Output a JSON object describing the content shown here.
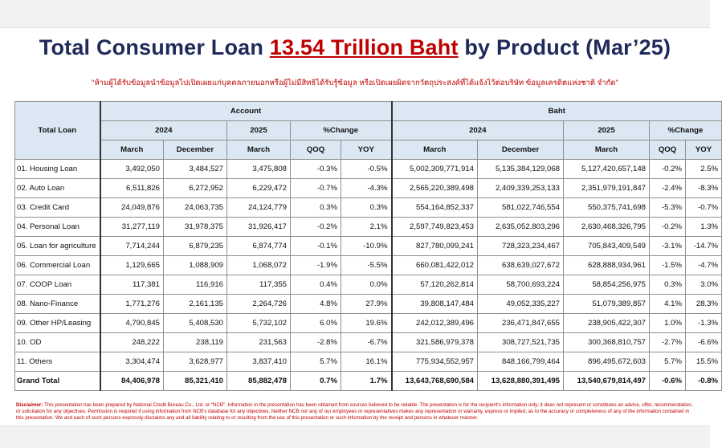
{
  "title": {
    "prefix": "Total Consumer Loan ",
    "highlight": "13.54 Trillion Baht",
    "suffix": " by Product (Mar’25)"
  },
  "notice": "\"ห้ามผู้ได้รับข้อมูลนำข้อมูลไปเปิดเผยแก่บุคคลภายนอกหรือผู้ไม่มีสิทธิได้รับรู้ข้อมูล หรือเปิดเผยผิดจากวัตถุประสงค์ที่ได้แจ้งไว้ต่อบริษัท ข้อมูลเครดิตแห่งชาติ จำกัด\"",
  "table": {
    "corner": "Total Loan",
    "groups": {
      "account": "Account",
      "baht": "Baht"
    },
    "years": {
      "y2024": "2024",
      "y2025": "2025",
      "change": "%Change"
    },
    "cols": {
      "march": "March",
      "december": "December",
      "qoq": "QOQ",
      "yoy": "YOY"
    },
    "rows": [
      {
        "label": "01. Housing Loan",
        "a_mar24": "3,492,050",
        "a_dec24": "3,484,527",
        "a_mar25": "3,475,808",
        "a_qoq": "-0.3%",
        "a_yoy": "-0.5%",
        "b_mar24": "5,002,309,771,914",
        "b_dec24": "5,135,384,129,068",
        "b_mar25": "5,127,420,657,148",
        "b_qoq": "-0.2%",
        "b_yoy": "2.5%"
      },
      {
        "label": "02. Auto Loan",
        "a_mar24": "6,511,826",
        "a_dec24": "6,272,952",
        "a_mar25": "6,229,472",
        "a_qoq": "-0.7%",
        "a_yoy": "-4.3%",
        "b_mar24": "2,565,220,389,498",
        "b_dec24": "2,409,339,253,133",
        "b_mar25": "2,351,979,191,847",
        "b_qoq": "-2.4%",
        "b_yoy": "-8.3%"
      },
      {
        "label": "03. Credit Card",
        "a_mar24": "24,049,876",
        "a_dec24": "24,063,735",
        "a_mar25": "24,124,779",
        "a_qoq": "0.3%",
        "a_yoy": "0.3%",
        "b_mar24": "554,164,852,337",
        "b_dec24": "581,022,746,554",
        "b_mar25": "550,375,741,698",
        "b_qoq": "-5.3%",
        "b_yoy": "-0.7%"
      },
      {
        "label": "04. Personal Loan",
        "a_mar24": "31,277,119",
        "a_dec24": "31,978,375",
        "a_mar25": "31,926,417",
        "a_qoq": "-0.2%",
        "a_yoy": "2.1%",
        "b_mar24": "2,597,749,823,453",
        "b_dec24": "2,635,052,803,296",
        "b_mar25": "2,630,468,326,795",
        "b_qoq": "-0.2%",
        "b_yoy": "1.3%"
      },
      {
        "label": "05. Loan for agriculture",
        "a_mar24": "7,714,244",
        "a_dec24": "6,879,235",
        "a_mar25": "6,874,774",
        "a_qoq": "-0.1%",
        "a_yoy": "-10.9%",
        "b_mar24": "827,780,099,241",
        "b_dec24": "728,323,234,467",
        "b_mar25": "705,843,409,549",
        "b_qoq": "-3.1%",
        "b_yoy": "-14.7%"
      },
      {
        "label": "06. Commercial Loan",
        "a_mar24": "1,129,665",
        "a_dec24": "1,088,909",
        "a_mar25": "1,068,072",
        "a_qoq": "-1.9%",
        "a_yoy": "-5.5%",
        "b_mar24": "660,081,422,012",
        "b_dec24": "638,639,027,672",
        "b_mar25": "628,888,934,961",
        "b_qoq": "-1.5%",
        "b_yoy": "-4.7%"
      },
      {
        "label": "07. COOP Loan",
        "a_mar24": "117,381",
        "a_dec24": "116,916",
        "a_mar25": "117,355",
        "a_qoq": "0.4%",
        "a_yoy": "0.0%",
        "b_mar24": "57,120,262,814",
        "b_dec24": "58,700,693,224",
        "b_mar25": "58,854,256,975",
        "b_qoq": "0.3%",
        "b_yoy": "3.0%"
      },
      {
        "label": "08. Nano-Finance",
        "a_mar24": "1,771,276",
        "a_dec24": "2,161,135",
        "a_mar25": "2,264,726",
        "a_qoq": "4.8%",
        "a_yoy": "27.9%",
        "b_mar24": "39,808,147,484",
        "b_dec24": "49,052,335,227",
        "b_mar25": "51,079,389,857",
        "b_qoq": "4.1%",
        "b_yoy": "28.3%"
      },
      {
        "label": "09. Other HP/Leasing",
        "a_mar24": "4,790,845",
        "a_dec24": "5,408,530",
        "a_mar25": "5,732,102",
        "a_qoq": "6.0%",
        "a_yoy": "19.6%",
        "b_mar24": "242,012,389,496",
        "b_dec24": "236,471,847,655",
        "b_mar25": "238,905,422,307",
        "b_qoq": "1.0%",
        "b_yoy": "-1.3%"
      },
      {
        "label": "10. OD",
        "a_mar24": "248,222",
        "a_dec24": "238,119",
        "a_mar25": "231,563",
        "a_qoq": "-2.8%",
        "a_yoy": "-6.7%",
        "b_mar24": "321,586,979,378",
        "b_dec24": "308,727,521,735",
        "b_mar25": "300,368,810,757",
        "b_qoq": "-2.7%",
        "b_yoy": "-6.6%"
      },
      {
        "label": "11. Others",
        "a_mar24": "3,304,474",
        "a_dec24": "3,628,977",
        "a_mar25": "3,837,410",
        "a_qoq": "5.7%",
        "a_yoy": "16.1%",
        "b_mar24": "775,934,552,957",
        "b_dec24": "848,166,799,464",
        "b_mar25": "896,495,672,603",
        "b_qoq": "5.7%",
        "b_yoy": "15.5%"
      }
    ],
    "grand": {
      "label": "Grand Total",
      "a_mar24": "84,406,978",
      "a_dec24": "85,321,410",
      "a_mar25": "85,882,478",
      "a_qoq": "0.7%",
      "a_yoy": "1.7%",
      "b_mar24": "13,643,768,690,584",
      "b_dec24": "13,628,880,391,495",
      "b_mar25": "13,540,679,814,497",
      "b_qoq": "-0.6%",
      "b_yoy": "-0.8%"
    }
  },
  "disclaimer": {
    "label": "Disclaimer:",
    "text": "This presentation has been prepared by National Credit Bureau Co., Ltd. or \"NCB\". Information in the presentation has been obtained from sources believed to be reliable. The presentation is for the recipient's information only; it does not represent or constitutes an advice, offer, recommendation, or solicitation for any objectives. Permission is required if using information from NCB's database for any objectives. Neither NCB nor any of our employees or representatives makes any representation or warranty, express or implied, as to the accuracy or completeness of any of the information contained in this presentation. We and each of such persons expressly disclaims any and all liability relating to or resulting from the use of this presentation or such information by the receipt and persons in whatever manner."
  }
}
